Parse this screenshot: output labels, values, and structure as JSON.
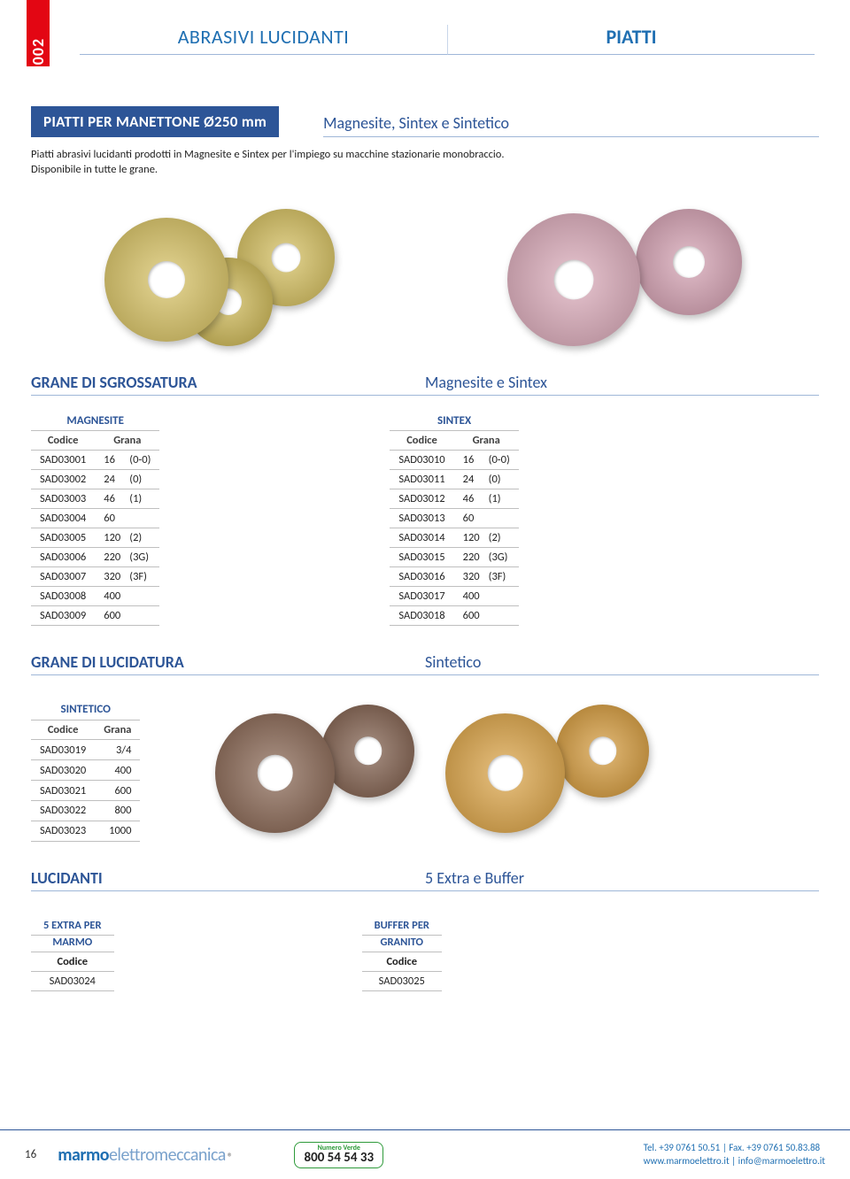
{
  "page": {
    "number": "16",
    "tab": "002"
  },
  "header": {
    "left": "ABRASIVI LUCIDANTI",
    "right": "PIATTI"
  },
  "title": "PIATTI PER MANETTONE Ø250 mm",
  "subtitle": "Magnesite, Sintex e Sintetico",
  "description_line1": "Piatti abrasivi lucidanti prodotti in Magnesite e Sintex per l'impiego su macchine stazionarie monobraccio.",
  "description_line2": "Disponibile in tutte le grane.",
  "section1": {
    "left": "GRANE DI SGROSSATURA",
    "right": "Magnesite e Sintex"
  },
  "magnesite": {
    "title": "MAGNESITE",
    "cols": [
      "Codice",
      "Grana"
    ],
    "rows": [
      [
        "SAD03001",
        "16",
        "(0-0)"
      ],
      [
        "SAD03002",
        "24",
        "(0)"
      ],
      [
        "SAD03003",
        "46",
        "(1)"
      ],
      [
        "SAD03004",
        "60",
        ""
      ],
      [
        "SAD03005",
        "120",
        "(2)"
      ],
      [
        "SAD03006",
        "220",
        "(3G)"
      ],
      [
        "SAD03007",
        "320",
        "(3F)"
      ],
      [
        "SAD03008",
        "400",
        ""
      ],
      [
        "SAD03009",
        "600",
        ""
      ]
    ]
  },
  "sintex": {
    "title": "SINTEX",
    "cols": [
      "Codice",
      "Grana"
    ],
    "rows": [
      [
        "SAD03010",
        "16",
        "(0-0)"
      ],
      [
        "SAD03011",
        "24",
        "(0)"
      ],
      [
        "SAD03012",
        "46",
        "(1)"
      ],
      [
        "SAD03013",
        "60",
        ""
      ],
      [
        "SAD03014",
        "120",
        "(2)"
      ],
      [
        "SAD03015",
        "220",
        "(3G)"
      ],
      [
        "SAD03016",
        "320",
        "(3F)"
      ],
      [
        "SAD03017",
        "400",
        ""
      ],
      [
        "SAD03018",
        "600",
        ""
      ]
    ]
  },
  "section2": {
    "left": "GRANE DI LUCIDATURA",
    "right": "Sintetico"
  },
  "sintetico": {
    "title": "SINTETICO",
    "cols": [
      "Codice",
      "Grana"
    ],
    "rows": [
      [
        "SAD03019",
        "3/4"
      ],
      [
        "SAD03020",
        "400"
      ],
      [
        "SAD03021",
        "600"
      ],
      [
        "SAD03022",
        "800"
      ],
      [
        "SAD03023",
        "1000"
      ]
    ]
  },
  "section3": {
    "left": "LUCIDANTI",
    "right": "5 Extra e Buffer"
  },
  "extra": {
    "title1": "5 EXTRA PER",
    "title2": "MARMO",
    "col": "Codice",
    "value": "SAD03024"
  },
  "buffer": {
    "title1": "BUFFER PER",
    "title2": "GRANITO",
    "col": "Codice",
    "value": "SAD03025"
  },
  "footer": {
    "brand1": "marmo",
    "brand2": "elettromeccanica",
    "numero_verde_label": "Numero Verde",
    "numero_verde": "800 54 54 33",
    "tel": "Tel. +39 0761 50.51 | Fax. +39 0761 50.83.88",
    "web": "www.marmoelettro.it | info@marmoelettro.it"
  },
  "colors": {
    "yellow": "#d8c46a",
    "pink": "#d8a8b8",
    "brown": "#8a6b5a",
    "orange": "#d8a24a"
  }
}
